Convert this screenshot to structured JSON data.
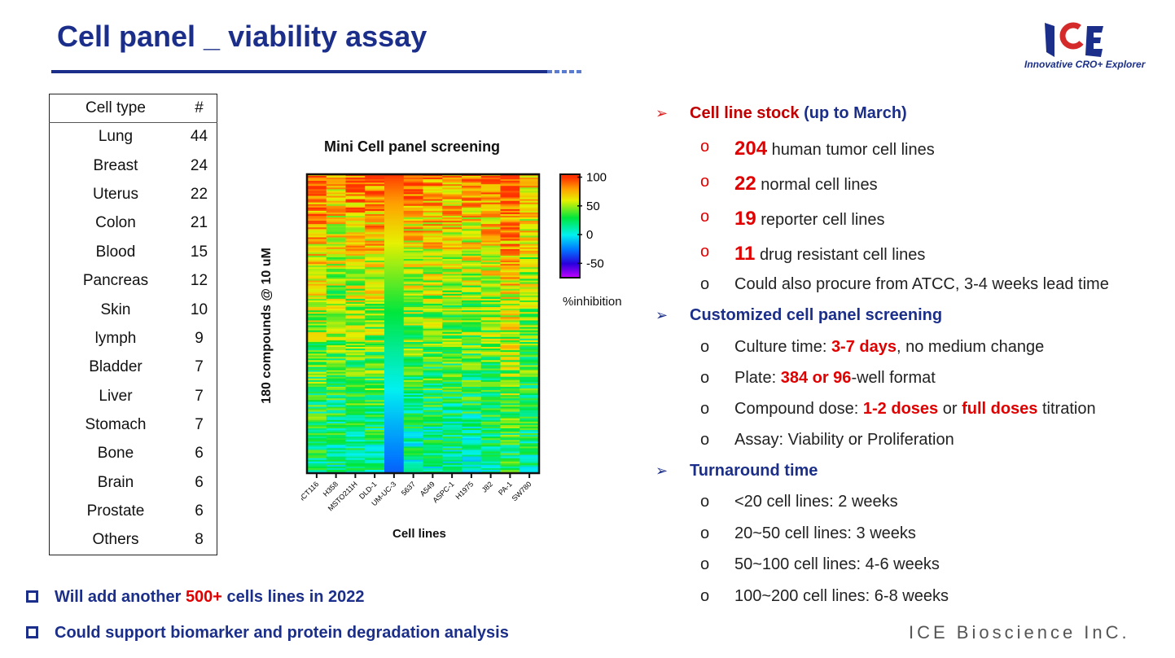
{
  "header": {
    "title": "Cell panel _ viability assay",
    "logo_text": "Innovative CRO+ Explorer",
    "logo_letters": "ICE"
  },
  "table": {
    "headers": [
      "Cell type",
      "#"
    ],
    "rows": [
      [
        "Lung",
        "44"
      ],
      [
        "Breast",
        "24"
      ],
      [
        "Uterus",
        "22"
      ],
      [
        "Colon",
        "21"
      ],
      [
        "Blood",
        "15"
      ],
      [
        "Pancreas",
        "12"
      ],
      [
        "Skin",
        "10"
      ],
      [
        "lymph",
        "9"
      ],
      [
        "Bladder",
        "7"
      ],
      [
        "Liver",
        "7"
      ],
      [
        "Stomach",
        "7"
      ],
      [
        "Bone",
        "6"
      ],
      [
        "Brain",
        "6"
      ],
      [
        "Prostate",
        "6"
      ],
      [
        "Others",
        "8"
      ]
    ]
  },
  "chart_data": {
    "type": "heatmap",
    "title": "Mini Cell panel screening",
    "xlabel": "Cell lines",
    "ylabel": "180 compounds @ 10 uM",
    "categories": [
      "HCT116",
      "H358",
      "MSTO211H",
      "DLD-1",
      "UM-UC-3",
      "5637",
      "A549",
      "ASPC-1",
      "H1975",
      "J82",
      "PA-1",
      "SW780"
    ],
    "rows": 180,
    "column_profile_top_to_bottom": [
      [
        95,
        15
      ],
      [
        80,
        15
      ],
      [
        90,
        15
      ],
      [
        92,
        15
      ],
      [
        100,
        -30
      ],
      [
        90,
        10
      ],
      [
        90,
        10
      ],
      [
        85,
        10
      ],
      [
        85,
        10
      ],
      [
        90,
        12
      ],
      [
        100,
        25
      ],
      [
        80,
        15
      ]
    ],
    "colorbar": {
      "label": "%inhibition",
      "ticks": [
        "100",
        "50",
        "0",
        "-50"
      ],
      "range": [
        -75,
        105
      ]
    }
  },
  "right": {
    "s1_title": "Cell line stock",
    "s1_suffix": "(up to March)",
    "stock": [
      [
        "204",
        "human tumor cell lines"
      ],
      [
        "22",
        "normal cell lines"
      ],
      [
        "19",
        "reporter cell lines"
      ],
      [
        "11",
        "drug resistant cell lines"
      ]
    ],
    "procure": "Could also procure from ATCC, 3-4 weeks lead time",
    "s2_title": "Customized cell panel screening",
    "culture": [
      "Culture time: ",
      "3-7 days",
      ", no medium change"
    ],
    "plate": [
      "Plate: ",
      "384 or 96",
      "-well format"
    ],
    "dose": [
      "Compound dose: ",
      "1-2 doses",
      " or ",
      "full doses",
      " titration"
    ],
    "assay": "Assay: Viability or Proliferation",
    "s3_title": "Turnaround time",
    "turnaround": [
      "<20 cell lines: 2 weeks",
      "20~50 cell lines: 3 weeks",
      "50~100 cell lines: 4-6 weeks",
      "100~200 cell lines: 6-8 weeks"
    ]
  },
  "bottom": {
    "b1": [
      "Will add another ",
      "500+",
      " cells lines in 2022"
    ],
    "b2": "Could support biomarker and protein degradation analysis"
  },
  "footer": "ICE Bioscience InC."
}
